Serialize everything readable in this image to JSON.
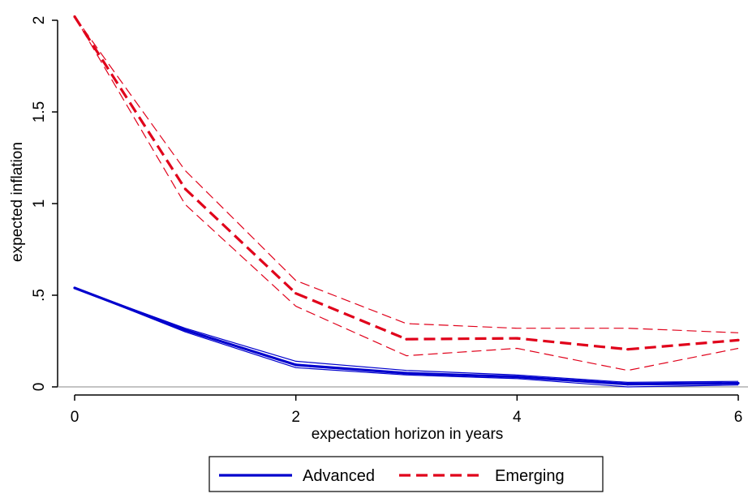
{
  "chart_data": {
    "type": "line",
    "title": "",
    "xlabel": "expectation horizon in years",
    "ylabel": "expected inflation",
    "xlim": [
      0,
      6
    ],
    "ylim": [
      0,
      2
    ],
    "x_ticks": [
      0,
      2,
      4,
      6
    ],
    "x_tick_labels": [
      "0",
      "2",
      "4",
      "6"
    ],
    "y_ticks": [
      0,
      0.5,
      1,
      1.5,
      2
    ],
    "y_tick_labels": [
      "0",
      ".5",
      "1",
      "1.5",
      "2"
    ],
    "x": [
      0,
      1,
      2,
      3,
      4,
      5,
      6
    ],
    "grid": false,
    "legend_position": "bottom",
    "series": [
      {
        "name": "Advanced",
        "style": "solid",
        "color": "#0000cd",
        "values": [
          0.54,
          0.31,
          0.12,
          0.075,
          0.055,
          0.015,
          0.02
        ],
        "ci_lower": [
          0.54,
          0.3,
          0.105,
          0.065,
          0.045,
          0.0,
          0.01
        ],
        "ci_upper": [
          0.54,
          0.32,
          0.14,
          0.09,
          0.065,
          0.025,
          0.03
        ]
      },
      {
        "name": "Emerging",
        "style": "dashed",
        "color": "#e0001a",
        "values": [
          2.02,
          1.08,
          0.51,
          0.26,
          0.265,
          0.205,
          0.255
        ],
        "ci_lower": [
          2.02,
          0.995,
          0.44,
          0.17,
          0.21,
          0.09,
          0.21
        ],
        "ci_upper": [
          2.02,
          1.18,
          0.58,
          0.345,
          0.32,
          0.32,
          0.295
        ]
      }
    ],
    "reference_line": {
      "y": 0,
      "color": "#8a8a8a"
    }
  }
}
